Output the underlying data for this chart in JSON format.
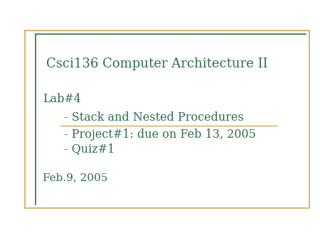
{
  "background_color": "#ffffff",
  "border_color_outer": "#d4aa50",
  "border_color_inner": "#2d6e4e",
  "text_color": "#2d6e4e",
  "title": "Csci136 Computer Architecture II",
  "lab_label": "Lab#4",
  "bullet1": " - Stack and Nested Procedures",
  "bullet2": " - Project#1: due on Feb 13, 2005",
  "bullet3": " - Quiz#1",
  "date": "Feb.9, 2005",
  "title_fontsize": 13,
  "body_fontsize": 11.5,
  "date_fontsize": 11
}
